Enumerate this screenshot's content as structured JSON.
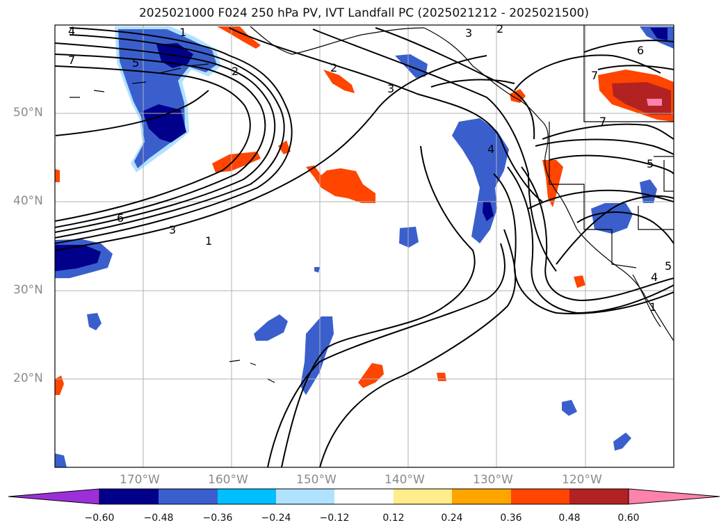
{
  "title": "2025021000 F024 250 hPa PV, IVT Landfall PC (2025021212 - 2025021500)",
  "map": {
    "projection": "lat-lon",
    "lon_range": [
      -180,
      -110
    ],
    "lat_range": [
      10,
      60
    ],
    "lat_labels": [
      {
        "lat": 50,
        "text": "50°N"
      },
      {
        "lat": 40,
        "text": "40°N"
      },
      {
        "lat": 30,
        "text": "30°N"
      },
      {
        "lat": 20,
        "text": "20°N"
      }
    ],
    "lon_labels": [
      {
        "lon": -170,
        "text": "170°W"
      },
      {
        "lon": -160,
        "text": "160°W"
      },
      {
        "lon": -150,
        "text": "150°W"
      },
      {
        "lon": -140,
        "text": "140°W"
      },
      {
        "lon": -130,
        "text": "130°W"
      },
      {
        "lon": -120,
        "text": "120°W"
      }
    ],
    "contour_labels": [
      "4",
      "1",
      "7",
      "5",
      "2",
      "2",
      "3",
      "3",
      "2",
      "6",
      "7",
      "4",
      "7",
      "5",
      "6",
      "3",
      "1",
      "5",
      "4",
      "1"
    ],
    "gridlines": true
  },
  "colorbar": {
    "ticks": [
      "−0.60",
      "−0.48",
      "−0.36",
      "−0.24",
      "−0.12",
      "0.12",
      "0.24",
      "0.36",
      "0.48",
      "0.60"
    ],
    "colors": [
      "#9b30d9",
      "#00008b",
      "#3a5fcd",
      "#00bfff",
      "#b0e2ff",
      "#ffffff",
      "#ffec8b",
      "#ffa500",
      "#ff4500",
      "#b22222",
      "#ff82ab"
    ],
    "extend": "both"
  }
}
